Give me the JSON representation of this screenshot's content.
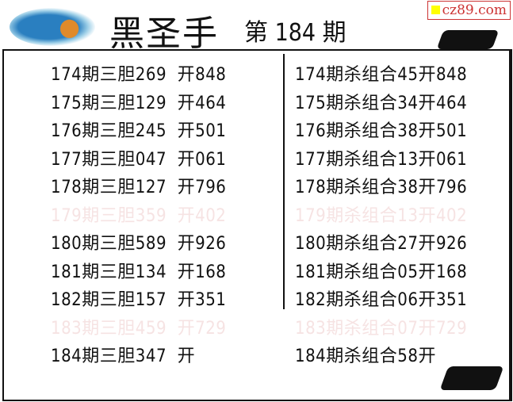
{
  "header": {
    "title": "黑圣手",
    "issue": "第 184 期",
    "watermark": "cz89.com"
  },
  "left": [
    {
      "text": "174期三胆269  开848",
      "faded": false
    },
    {
      "text": "175期三胆129  开464",
      "faded": false
    },
    {
      "text": "176期三胆245  开501",
      "faded": false
    },
    {
      "text": "177期三胆047  开061",
      "faded": false
    },
    {
      "text": "178期三胆127  开796",
      "faded": false
    },
    {
      "text": "179期三胆359  开402",
      "faded": true
    },
    {
      "text": "180期三胆589  开926",
      "faded": false
    },
    {
      "text": "181期三胆134  开168",
      "faded": false
    },
    {
      "text": "182期三胆157  开351",
      "faded": false
    },
    {
      "text": "183期三胆459  开729",
      "faded": true
    },
    {
      "text": "184期三胆347  开",
      "faded": false
    }
  ],
  "right": [
    {
      "text": "174期杀组合45开848",
      "faded": false
    },
    {
      "text": "175期杀组合34开464",
      "faded": false
    },
    {
      "text": "176期杀组合38开501",
      "faded": false
    },
    {
      "text": "177期杀组合13开061",
      "faded": false
    },
    {
      "text": "178期杀组合38开796",
      "faded": false
    },
    {
      "text": "179期杀组合13开402",
      "faded": true
    },
    {
      "text": "180期杀组合27开926",
      "faded": false
    },
    {
      "text": "181期杀组合05开168",
      "faded": false
    },
    {
      "text": "182期杀组合06开351",
      "faded": false
    },
    {
      "text": "183期杀组合07开729",
      "faded": true
    },
    {
      "text": "184期杀组合58开",
      "faded": false
    }
  ]
}
